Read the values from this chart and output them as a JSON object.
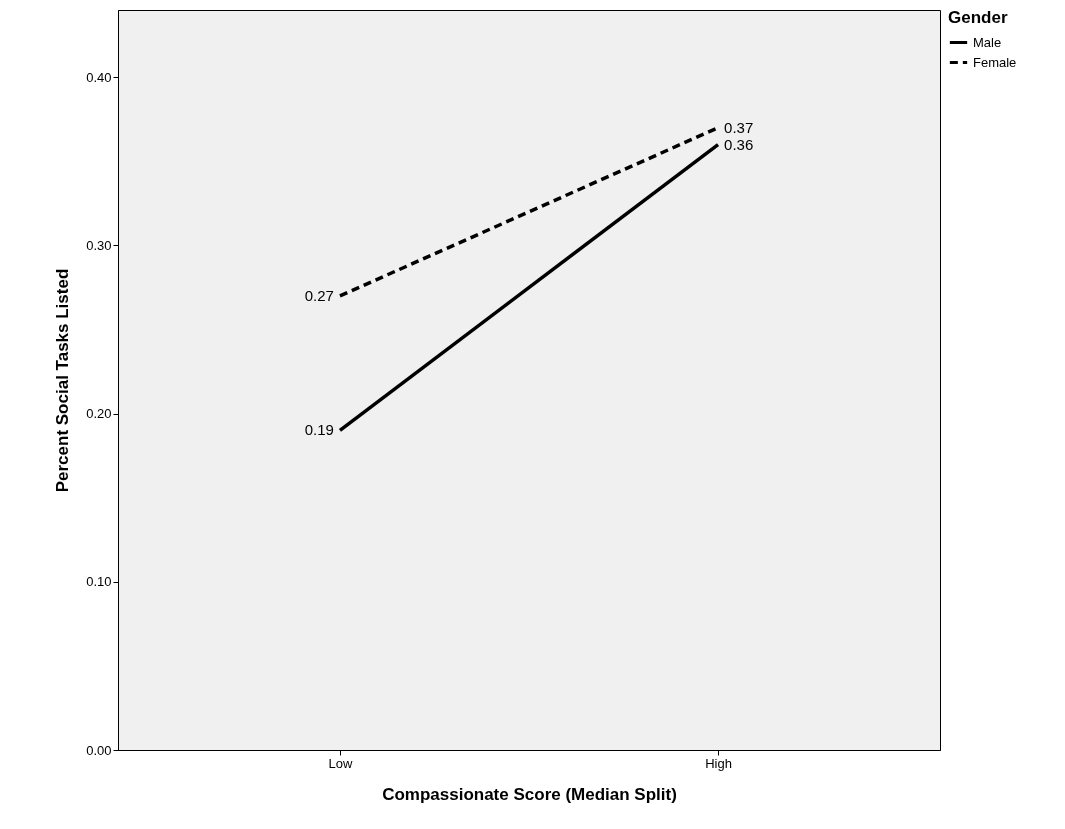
{
  "chart_data": {
    "type": "line",
    "xlabel": "Compassionate Score (Median Split)",
    "ylabel": "Percent Social Tasks Listed",
    "legend_title": "Gender",
    "categories": [
      "Low",
      "High"
    ],
    "series": [
      {
        "name": "Male",
        "color": "#000000",
        "values": [
          0.19,
          0.36
        ],
        "line_style": "solid"
      },
      {
        "name": "Female",
        "color": "#000000",
        "values": [
          0.27,
          0.37
        ],
        "line_style": "dashed"
      }
    ],
    "ylim": [
      0,
      0.44
    ],
    "yticks": [
      {
        "value": 0,
        "label": "0.00"
      },
      {
        "value": 0.1,
        "label": "0.10"
      },
      {
        "value": 0.2,
        "label": "0.20"
      },
      {
        "value": 0.3,
        "label": "0.30"
      },
      {
        "value": 0.4,
        "label": "0.40"
      }
    ],
    "grid": false,
    "legend": "top right",
    "marker": "none",
    "data_labels": true
  }
}
